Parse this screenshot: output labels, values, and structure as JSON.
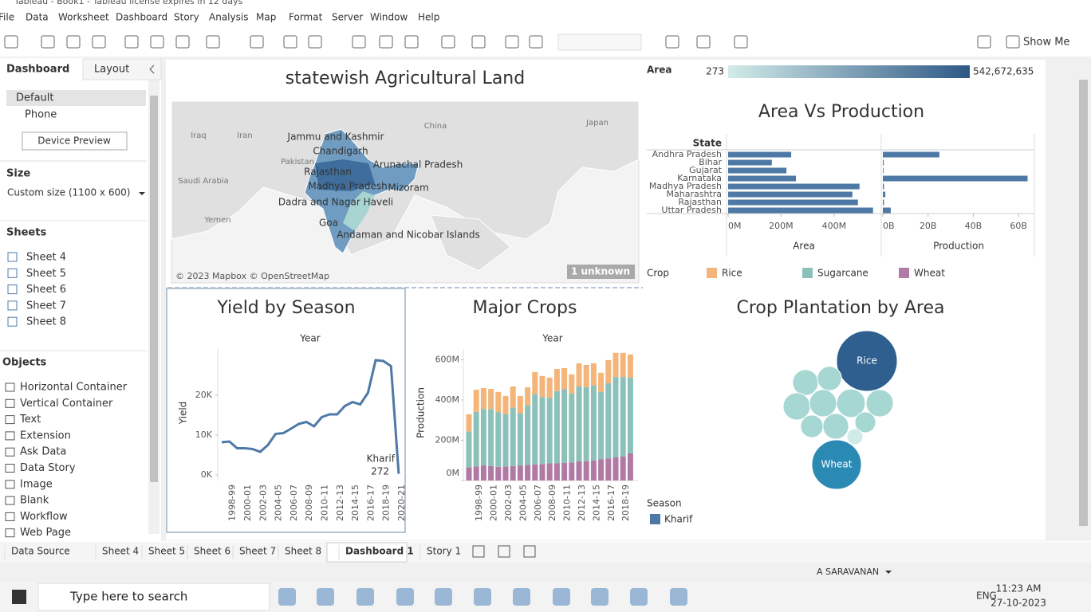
{
  "window": {
    "title": "Tableau - Book1 - Tableau license expires in 12 days"
  },
  "menu": [
    "File",
    "Data",
    "Worksheet",
    "Dashboard",
    "Story",
    "Analysis",
    "Map",
    "Format",
    "Server",
    "Window",
    "Help"
  ],
  "toolbar": {
    "show_me": "Show Me"
  },
  "side_panel": {
    "tabs": [
      "Dashboard",
      "Layout"
    ],
    "devices": [
      "Default",
      "Phone"
    ],
    "device_preview": "Device Preview",
    "size_header": "Size",
    "size_value": "Custom size (1100 x 600)",
    "sheets_header": "Sheets",
    "sheets": [
      "Sheet 4",
      "Sheet 5",
      "Sheet 6",
      "Sheet 7",
      "Sheet 8"
    ],
    "objects_header": "Objects",
    "objects": [
      "Horizontal Container",
      "Vertical Container",
      "Text",
      "Extension",
      "Ask Data",
      "Data Story",
      "Image",
      "Blank",
      "Workflow",
      "Web Page"
    ]
  },
  "dashboard": {
    "map": {
      "title": "statewish Agricultural Land",
      "state_labels": [
        "Jammu and Kashmir",
        "Chandigarh",
        "Rajasthan",
        "Arunachal Pradesh",
        "Madhya Pradesh",
        "Mizoram",
        "Dadra and Nagar Haveli",
        "Goa",
        "Andaman and Nicobar Islands"
      ],
      "base_labels": [
        "China",
        "Japan",
        "Iraq",
        "Iran",
        "Pakistan",
        "Saudi Arabia",
        "Yemen"
      ],
      "attribution": "© 2023 Mapbox © OpenStreetMap",
      "unknown": "1 unknown",
      "legend": {
        "title": "Area",
        "min": 273,
        "max": {
          "value": 542672635,
          "label": "542,672,635"
        },
        "colors": [
          "#d3ece9",
          "#2e5886"
        ]
      }
    },
    "area_vs_production": {
      "type": "bar",
      "title": "Area Vs Production",
      "row_header": "State",
      "categories": [
        "Andhra Pradesh",
        "Bihar",
        "Gujarat",
        "Karnataka",
        "Madhya Pradesh",
        "Maharashtra",
        "Rajasthan",
        "Uttar Pradesh"
      ],
      "series": [
        {
          "name": "Area",
          "color": "#4e79a7",
          "values": [
            238000000,
            165000000,
            220000000,
            256000000,
            496000000,
            469000000,
            490000000,
            547000000
          ],
          "xlim": [
            0,
            572000000
          ],
          "xticks": [
            {
              "value": 0,
              "label": "0M"
            },
            {
              "value": 200000000,
              "label": "200M"
            },
            {
              "value": 400000000,
              "label": "400M"
            }
          ]
        },
        {
          "name": "Production",
          "color": "#4e79a7",
          "values": [
            25000000000,
            400000000,
            300000000,
            64000000000,
            500000000,
            1100000000,
            500000000,
            3500000000
          ],
          "xlim": [
            0,
            67000000000
          ],
          "xticks": [
            {
              "value": 0,
              "label": "0B"
            },
            {
              "value": 20000000000,
              "label": "20B"
            },
            {
              "value": 40000000000,
              "label": "40B"
            },
            {
              "value": 60000000000,
              "label": "60B"
            }
          ]
        }
      ]
    },
    "yield_by_season": {
      "type": "line",
      "title": "Yield by Season",
      "x_header": "Year",
      "y_label": "Yield",
      "categories": [
        null,
        "1998-99",
        null,
        "2000-01",
        null,
        "2002-03",
        null,
        "2004-05",
        null,
        "2006-07",
        null,
        "2008-09",
        null,
        "2010-11",
        null,
        "2012-13",
        null,
        "2014-15",
        null,
        "2016-17",
        null,
        "2018-19",
        null,
        "2020-21"
      ],
      "series": [
        {
          "name": "Kharif",
          "color": "#4e79a7",
          "values": [
            8200,
            8400,
            6700,
            6700,
            6500,
            5800,
            7500,
            10300,
            10500,
            11600,
            12800,
            13300,
            12200,
            14500,
            15200,
            15200,
            17300,
            18300,
            17700,
            20600,
            28800,
            28600,
            27300,
            272
          ]
        }
      ],
      "ylim": [
        -1400,
        31600
      ],
      "yticks": [
        {
          "value": 0,
          "label": "0K"
        },
        {
          "value": 10000,
          "label": "10K"
        },
        {
          "value": 20000,
          "label": "20K"
        }
      ],
      "legend_title": "Season"
    },
    "major_crops": {
      "type": "stacked_bar",
      "title": "Major Crops",
      "x_header": "Year",
      "y_label": "Production",
      "legend_title": "Crop",
      "categories": [
        null,
        "1998-99",
        null,
        "2000-01",
        null,
        "2002-03",
        null,
        "2004-05",
        null,
        "2006-07",
        null,
        "2008-09",
        null,
        "2010-11",
        null,
        "2012-13",
        null,
        "2014-15",
        null,
        "2016-17",
        null,
        "2018-19",
        null
      ],
      "series": [
        {
          "name": "Rice",
          "color": "#f4b57a",
          "values": [
            85000000.0,
            110000000.0,
            105000000.0,
            100000000.0,
            100000000.0,
            90000000.0,
            105000000.0,
            85000000.0,
            90000000.0,
            110000000.0,
            105000000.0,
            100000000.0,
            110000000.0,
            105000000.0,
            95000000.0,
            115000000.0,
            110000000.0,
            110000000.0,
            95000000.0,
            115000000.0,
            120000000.0,
            120000000.0,
            115000000.0
          ]
        },
        {
          "name": "Sugarcane",
          "color": "#8cc1b9",
          "values": [
            179000000.0,
            271000000.0,
            279000000.0,
            283000000.0,
            272000000.0,
            260000000.0,
            290000000.0,
            260000000.0,
            295000000.0,
            349000000.0,
            332000000.0,
            326000000.0,
            359000000.0,
            365000000.0,
            342000000.0,
            372000000.0,
            369000000.0,
            372000000.0,
            335000000.0,
            373000000.0,
            399000000.0,
            394000000.0,
            376000000.0
          ]
        },
        {
          "name": "Wheat",
          "color": "#b07aa4",
          "values": [
            65000000.0,
            70000000.0,
            75000000.0,
            72000000.0,
            68000000.0,
            70000000.0,
            72000000.0,
            75000000.0,
            78000000.0,
            80000000.0,
            82000000.0,
            85000000.0,
            85000000.0,
            88000000.0,
            90000000.0,
            95000000.0,
            95000000.0,
            100000000.0,
            105000000.0,
            110000000.0,
            115000000.0,
            120000000.0,
            135000000.0
          ]
        }
      ],
      "ylim": [
        0,
        653000000
      ],
      "yticks": [
        {
          "value": 0,
          "label": "0M"
        },
        {
          "value": 200000000,
          "label": "200M"
        },
        {
          "value": 400000000,
          "label": "400M"
        },
        {
          "value": 600000000,
          "label": "600M"
        }
      ]
    },
    "crop_plantation": {
      "type": "bubble",
      "title": "Crop Plantation by Area",
      "categories": [
        "Rice",
        "Wheat",
        null,
        null,
        null,
        null,
        null,
        null,
        null,
        null,
        null,
        null
      ],
      "values": [
        144,
        96,
        26,
        23,
        29,
        29,
        32,
        29,
        20,
        26,
        17,
        10
      ],
      "colors": [
        "#2f5f8e",
        "#2b8ab4",
        "#a6d7d3",
        "#a6d7d3",
        "#a6d7d3",
        "#a6d7d3",
        "#a6d7d3",
        "#a6d7d3",
        "#a6d7d3",
        "#a6d7d3",
        "#a6d7d3",
        "#cfeae7"
      ]
    }
  },
  "sheet_tabs": [
    "Data Source",
    "Sheet 4",
    "Sheet 5",
    "Sheet 6",
    "Sheet 7",
    "Sheet 8",
    "Dashboard 1",
    "Story 1"
  ],
  "status_bar": {
    "user": "A SARAVANAN"
  },
  "taskbar": {
    "search": "Type here to search",
    "language": "ENG",
    "time": "11:23 AM",
    "date": "27-10-2023"
  }
}
